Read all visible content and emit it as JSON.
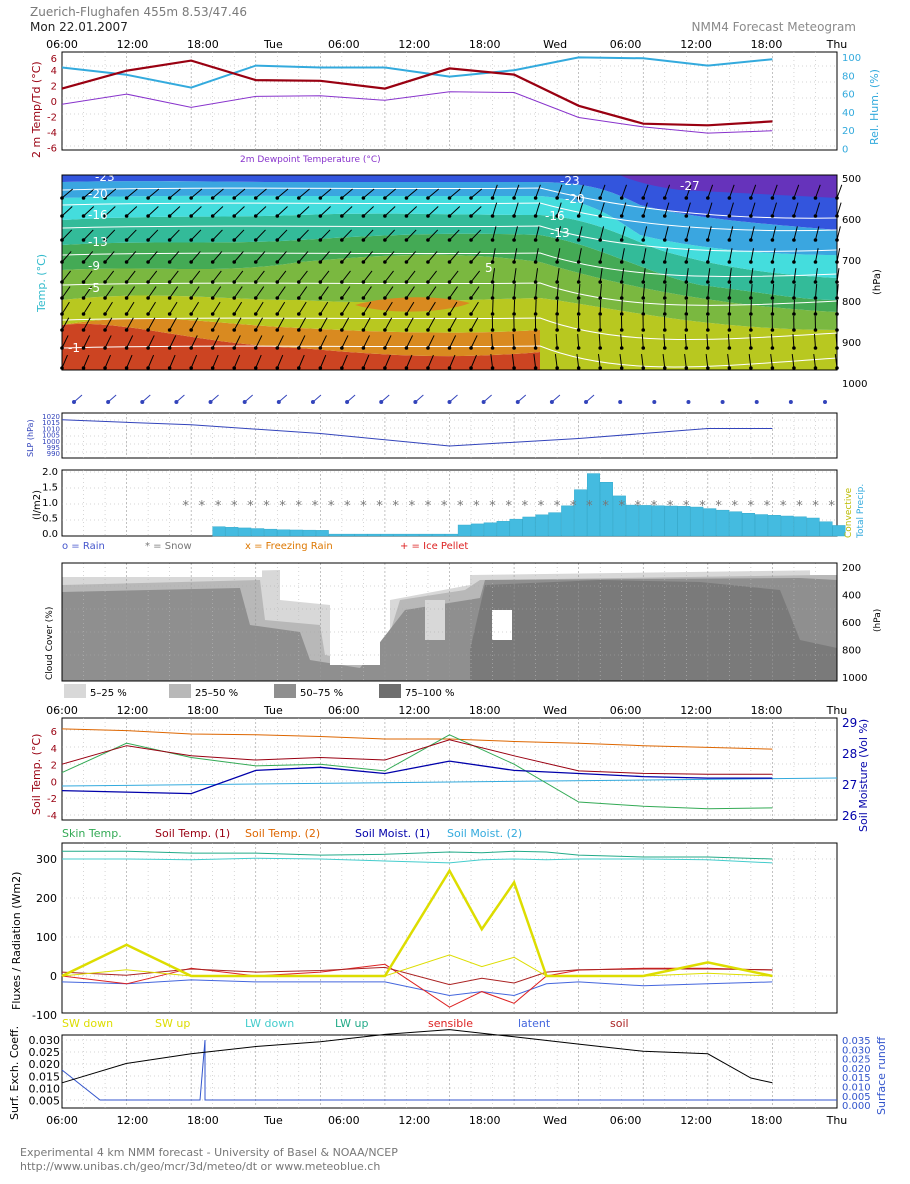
{
  "header": {
    "station": "Zuerich-Flughafen  455m 8.53/47.46",
    "date": "Mon 22.01.2007",
    "product": "NMM4 Forecast Meteogram"
  },
  "time_axis": [
    "06:00",
    "12:00",
    "18:00",
    "Tue",
    "06:00",
    "12:00",
    "18:00",
    "Wed",
    "06:00",
    "12:00",
    "18:00",
    "Thu"
  ],
  "footer": {
    "line1": "Experimental 4 km NMM forecast  - University of Basel & NOAA/NCEP",
    "line2": "http://www.unibas.ch/geo/mcr/3d/meteo/dt   or   www.meteoblue.ch"
  },
  "colors": {
    "temp": "#990011",
    "dewpoint": "#8833cc",
    "humidity": "#33aadd",
    "pressure": "#3344bb",
    "precip": "#44bbe0",
    "soil_orange": "#dd6600",
    "skin_green": "#33aa55",
    "moist_blue": "#0000aa",
    "moist2": "#33aadd",
    "sw_up": "#dddd00",
    "lw_down": "#44cccc",
    "lw_up": "#22aa88",
    "sensible": "#dd2222",
    "latent": "#4466dd",
    "soil_flux": "#aa2222",
    "runoff": "#3355cc"
  },
  "charts": {
    "temp": {
      "ylabel_left": "2 m Temp/Td (°C)",
      "ylabel_right": "Rel. Hum. (%)",
      "legend": "2m Dewpoint Temperature (°C)",
      "yticks_left": [
        "4",
        "2",
        "0",
        "-2",
        "-4",
        "-6"
      ],
      "top_left": "6",
      "yticks_right": [
        "100",
        "80",
        "60",
        "40",
        "20",
        "0"
      ]
    },
    "upper": {
      "ylabel_left": "Temp. (°C)",
      "ylabel_right": "(hPa)",
      "yticks_right": [
        "500",
        "600",
        "700",
        "800",
        "900",
        "1000"
      ],
      "isotherm_labels": [
        "-23",
        "-20",
        "-16",
        "-13",
        "-9",
        "-5",
        "-1",
        "-27",
        "-23",
        "-20",
        "-16",
        "-13",
        "5"
      ]
    },
    "slp": {
      "ylabel": "SLP (hPa)",
      "yticks": [
        "1020",
        "1015",
        "1010",
        "1005",
        "1000",
        "995",
        "990"
      ]
    },
    "precip": {
      "ylabel": "(l/m2)",
      "yticks": [
        "2.0",
        "1.5",
        "1.0",
        "0.5",
        "0.0"
      ],
      "right1": "Convective",
      "right2": "Total Precip."
    },
    "precip_legend": [
      {
        "text": "o = Rain",
        "color": "#4455cc"
      },
      {
        "text": "* = Snow",
        "color": "#777777"
      },
      {
        "text": "x = Freezing Rain",
        "color": "#dd7700"
      },
      {
        "text": "+ = Ice Pellet",
        "color": "#dd2222"
      }
    ],
    "cloud": {
      "ylabel": "Cloud Cover (%)",
      "ylabel_right": "(hPa)",
      "yticks_right": [
        "200",
        "400",
        "600",
        "800",
        "1000"
      ],
      "legend": [
        {
          "text": "5–25 %",
          "color": "#d8d8d8"
        },
        {
          "text": "25–50 %",
          "color": "#b8b8b8"
        },
        {
          "text": "50–75 %",
          "color": "#8f8f8f"
        },
        {
          "text": "75–100 %",
          "color": "#6e6e6e"
        }
      ]
    },
    "soil": {
      "ylabel_left": "Soil Temp. (°C)",
      "ylabel_right": "Soil Moisture (Vol %)",
      "yticks_left": [
        "6",
        "4",
        "2",
        "0",
        "-2",
        "-4"
      ],
      "yticks_right": [
        "29",
        "28",
        "27",
        "26"
      ],
      "legend": [
        {
          "text": "Skin Temp.",
          "color": "#33aa55"
        },
        {
          "text": "Soil Temp. (1)",
          "color": "#990011"
        },
        {
          "text": "Soil Temp. (2)",
          "color": "#dd6600"
        },
        {
          "text": "Soil Moist. (1)",
          "color": "#0000aa"
        },
        {
          "text": "Soil Moist. (2)",
          "color": "#33aadd"
        }
      ]
    },
    "flux": {
      "ylabel": "Fluxes / Radiation (Wm2)",
      "yticks": [
        "300",
        "200",
        "100",
        "0",
        "-100"
      ],
      "legend": [
        {
          "text": "SW down",
          "color": "#dddd00"
        },
        {
          "text": "SW up",
          "color": "#dddd00"
        },
        {
          "text": "LW down",
          "color": "#44cccc"
        },
        {
          "text": "LW up",
          "color": "#22aa88"
        },
        {
          "text": "sensible",
          "color": "#dd2222"
        },
        {
          "text": "latent",
          "color": "#4466dd"
        },
        {
          "text": "soil",
          "color": "#aa2222"
        }
      ]
    },
    "exch": {
      "ylabel": "Surf. Exch. Coeff.",
      "ylabel_right": "Surface runoff",
      "yticks_left": [
        "0.030",
        "0.025",
        "0.020",
        "0.015",
        "0.010",
        "0.005"
      ],
      "yticks_right": [
        "0.035",
        "0.030",
        "0.025",
        "0.020",
        "0.015",
        "0.010",
        "0.005",
        "0.000"
      ]
    }
  },
  "chart_data": [
    {
      "type": "line",
      "x_hours": [
        0,
        6,
        12,
        18,
        24,
        30,
        36,
        42,
        48,
        54,
        60,
        66
      ],
      "series": [
        {
          "name": "2m Temp",
          "values": [
            1.2,
            3.5,
            4.8,
            2.3,
            2.2,
            1.2,
            3.8,
            3.0,
            -1.0,
            -3.3,
            -3.5,
            -3.0
          ]
        },
        {
          "name": "2m Dewpoint Temperature (°C)",
          "values": [
            -0.8,
            0.5,
            -1.2,
            0.2,
            0.3,
            -0.3,
            0.8,
            0.7,
            -2.5,
            -3.7,
            -4.5,
            -4.2
          ]
        },
        {
          "name": "Rel. Hum.",
          "values": [
            88,
            80,
            66,
            90,
            88,
            88,
            78,
            85,
            99,
            98,
            90,
            97
          ]
        }
      ]
    },
    {
      "type": "line",
      "name": "SLP",
      "x_hours": [
        0,
        12,
        24,
        36,
        48,
        60,
        66
      ],
      "values": [
        1017,
        1013,
        1006,
        996,
        1002,
        1010,
        1010
      ]
    },
    {
      "type": "bar",
      "name": "Total Precip.",
      "x_hours": [
        14,
        20,
        30,
        40,
        46,
        49,
        52,
        58,
        64,
        69,
        72
      ],
      "values": [
        0.3,
        0.2,
        0.15,
        0.45,
        0.8,
        2.1,
        1.0,
        0.95,
        0.7,
        0.6,
        0.3
      ]
    },
    {
      "type": "line",
      "x_hours": [
        0,
        6,
        12,
        18,
        24,
        30,
        36,
        42,
        48,
        54,
        60,
        66
      ],
      "series": [
        {
          "name": "Skin Temp.",
          "values": [
            1.0,
            4.5,
            2.8,
            1.8,
            2.0,
            1.2,
            5.5,
            2.0,
            -2.5,
            -3.0,
            -3.3,
            -3.2
          ]
        },
        {
          "name": "Soil Temp. (1)",
          "values": [
            2.0,
            4.2,
            3.0,
            2.5,
            2.8,
            2.5,
            4.9,
            3.0,
            1.2,
            0.9,
            0.8,
            0.8
          ]
        },
        {
          "name": "Soil Temp. (2)",
          "values": [
            6.2,
            6.0,
            5.6,
            5.5,
            5.3,
            5.0,
            5.0,
            4.7,
            4.5,
            4.2,
            4.0,
            3.8
          ]
        },
        {
          "name": "Soil Moist. (1)",
          "values": [
            26.95,
            26.9,
            26.85,
            27.6,
            27.7,
            27.5,
            27.9,
            27.6,
            27.5,
            27.4,
            27.35,
            27.35
          ]
        }
      ]
    },
    {
      "type": "line",
      "x_hours": [
        0,
        6,
        12,
        18,
        24,
        30,
        36,
        39,
        42,
        45,
        48,
        54,
        60,
        66
      ],
      "series": [
        {
          "name": "SW down",
          "values": [
            0,
            80,
            0,
            0,
            0,
            0,
            270,
            120,
            240,
            0,
            0,
            0,
            35,
            0
          ]
        },
        {
          "name": "LW up",
          "values": [
            320,
            320,
            315,
            315,
            310,
            312,
            318,
            316,
            320,
            318,
            310,
            305,
            305,
            300
          ]
        },
        {
          "name": "LW down",
          "values": [
            300,
            300,
            298,
            302,
            300,
            295,
            290,
            298,
            300,
            298,
            300,
            300,
            298,
            290
          ]
        },
        {
          "name": "sensible",
          "values": [
            0,
            -20,
            20,
            0,
            10,
            30,
            -80,
            -40,
            -70,
            0,
            15,
            20,
            20,
            15
          ]
        },
        {
          "name": "latent",
          "values": [
            -15,
            -20,
            -10,
            -15,
            -15,
            -15,
            -50,
            -40,
            -50,
            -20,
            -15,
            -25,
            -20,
            -15
          ]
        }
      ]
    },
    {
      "type": "line",
      "name": "Surf. Exch. Coeff.",
      "x_hours": [
        0,
        6,
        12,
        18,
        24,
        30,
        36,
        42,
        48,
        54,
        60,
        64,
        66
      ],
      "values": [
        0.01,
        0.018,
        0.022,
        0.025,
        0.027,
        0.03,
        0.032,
        0.029,
        0.026,
        0.023,
        0.022,
        0.012,
        0.01
      ]
    }
  ]
}
